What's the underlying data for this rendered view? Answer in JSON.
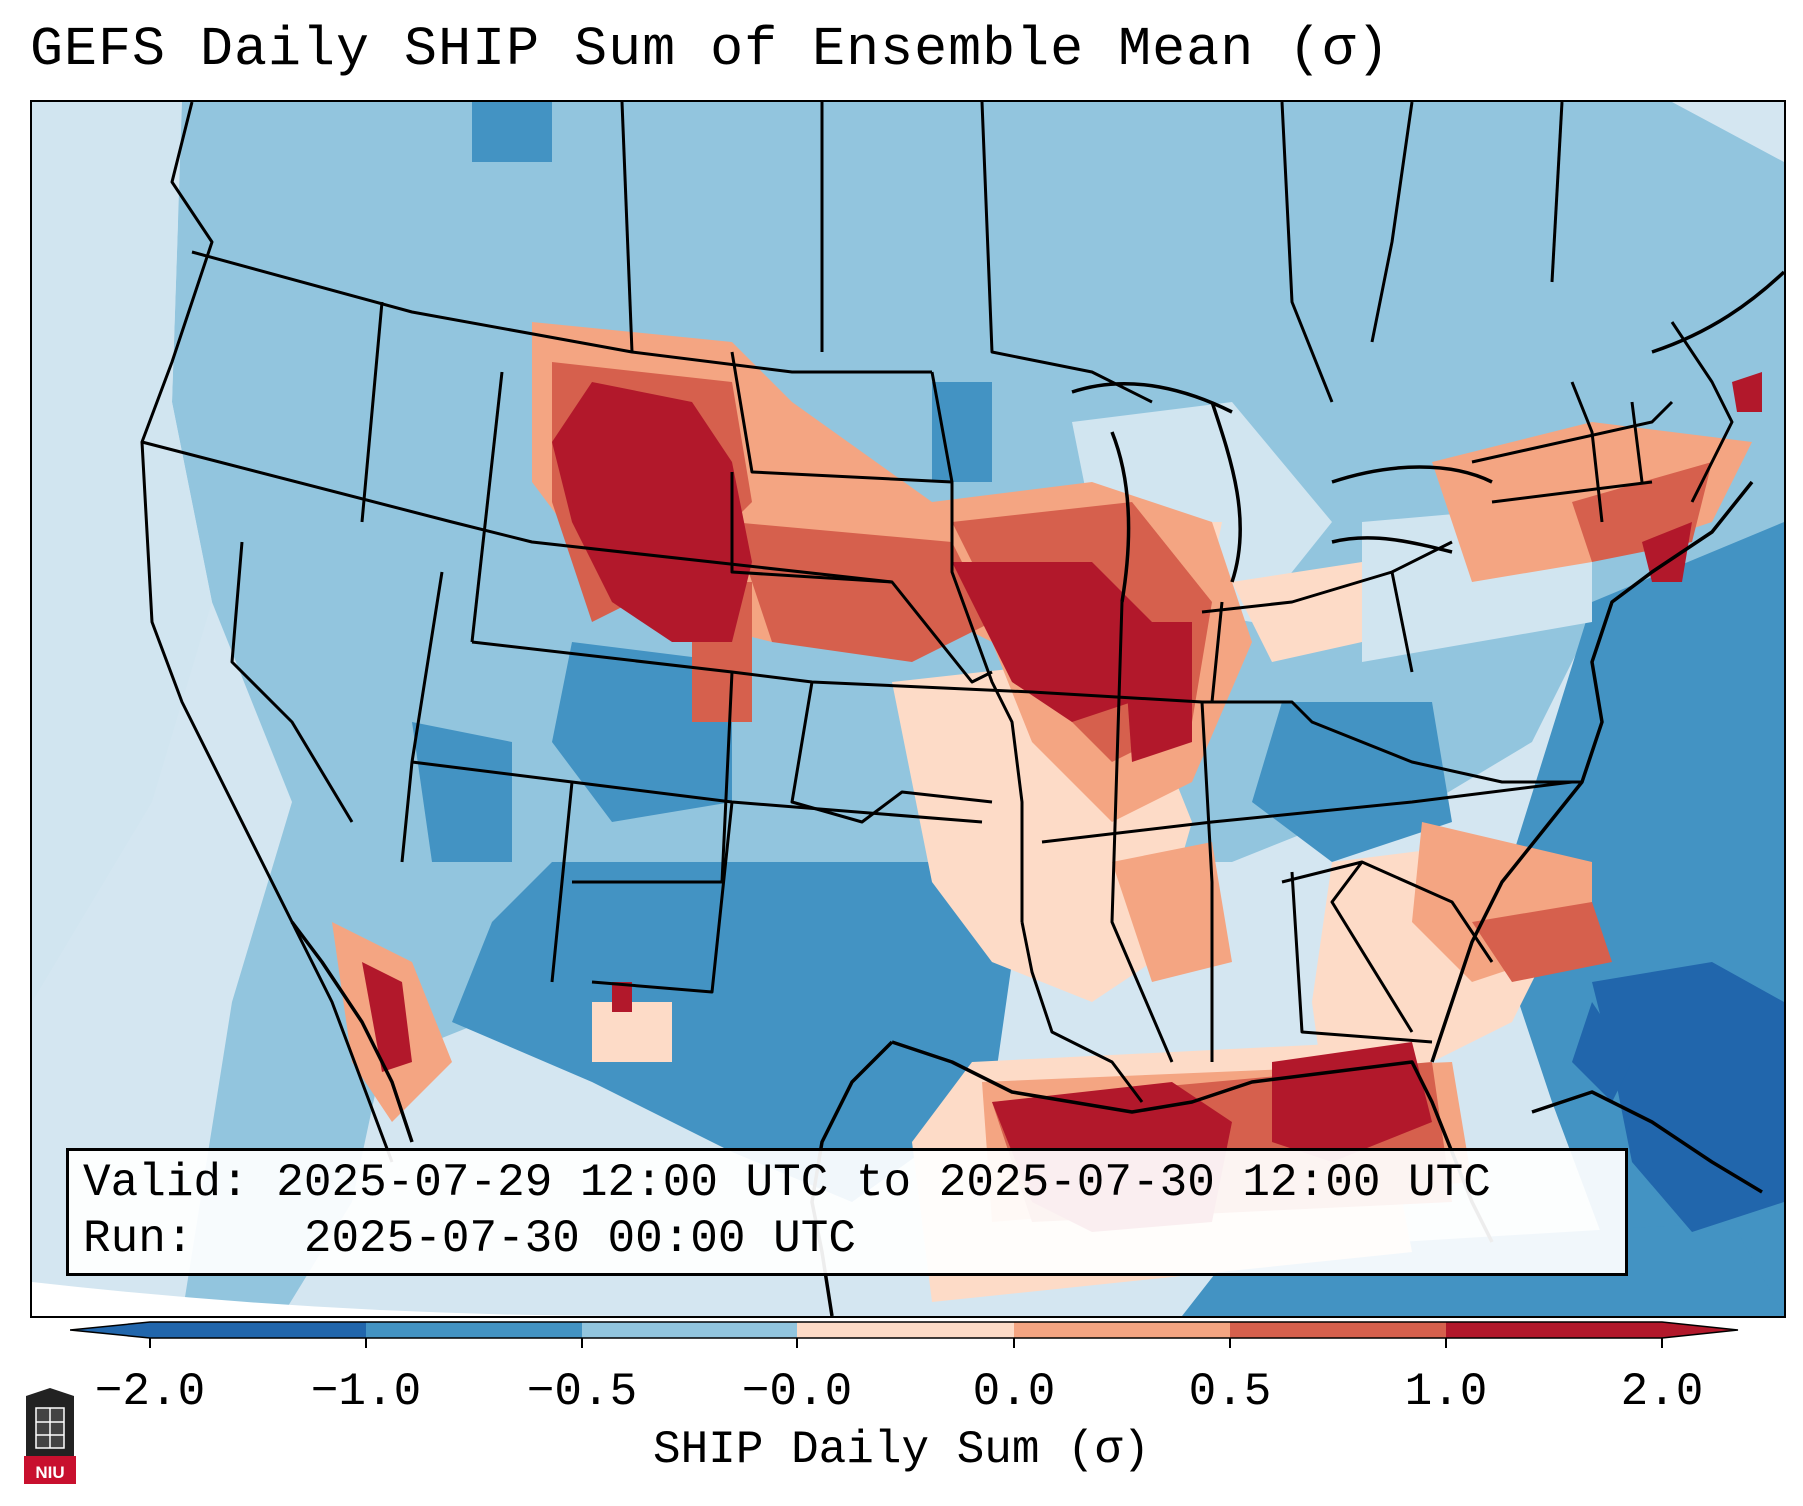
{
  "title": "GEFS Daily SHIP Sum of Ensemble Mean (σ)",
  "info": {
    "valid_label": "Valid:",
    "valid_value": "2025-07-29 12:00 UTC to 2025-07-30 12:00 UTC",
    "run_label": "Run:",
    "run_value": "2025-07-30 00:00 UTC"
  },
  "colorbar": {
    "label": "SHIP Daily Sum (σ)",
    "ticks": [
      "−2.0",
      "−1.0",
      "−0.5",
      "−0.0",
      "0.0",
      "0.5",
      "1.0",
      "2.0"
    ],
    "bins": [
      -2.0,
      -1.0,
      -0.5,
      0.0,
      0.0,
      0.5,
      1.0,
      2.0
    ],
    "colors": [
      "#2166ac",
      "#4393c3",
      "#92c5de",
      "#d1e5f0",
      "#fddbc7",
      "#f4a582",
      "#d6604d",
      "#b2182b"
    ]
  },
  "logo": {
    "text": "NIU"
  },
  "field_regions": [
    {
      "name": "wyoming-montana-maximum",
      "value": 2.0
    },
    {
      "name": "upper-mississippi-valley-maximum",
      "value": 2.0
    },
    {
      "name": "northern-gulf-of-mexico-maximum",
      "value": 2.0
    },
    {
      "name": "southern-new-england-maximum",
      "value": 2.0
    },
    {
      "name": "gulf-of-california-maximum",
      "value": 2.0
    },
    {
      "name": "texas-minimum",
      "value": -1.0
    },
    {
      "name": "western-atlantic-minimum",
      "value": -2.0
    }
  ]
}
